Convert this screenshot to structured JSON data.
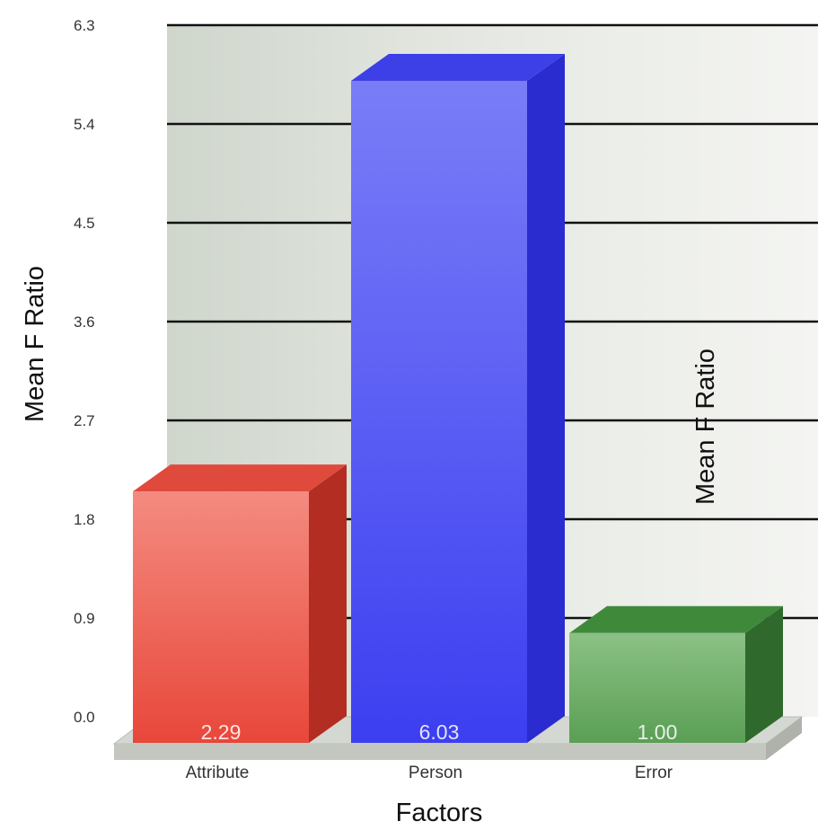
{
  "chart_data": {
    "type": "bar",
    "categories": [
      "Attribute",
      "Person",
      "Error"
    ],
    "values": [
      2.29,
      6.03,
      1.0
    ],
    "value_labels": [
      "2.29",
      "6.03",
      "1.00"
    ],
    "xlabel": "Factors",
    "ylabel": "Mean F Ratio",
    "ylabel_secondary": "Mean F Ratio",
    "ylim": [
      0,
      6.3
    ],
    "yticks": [
      "0.0",
      "0.9",
      "1.8",
      "2.7",
      "3.6",
      "4.5",
      "5.4",
      "6.3"
    ],
    "grid": true,
    "style": "3d",
    "colors": [
      "#e8473a",
      "#4a4df2",
      "#4f9a4a"
    ]
  }
}
